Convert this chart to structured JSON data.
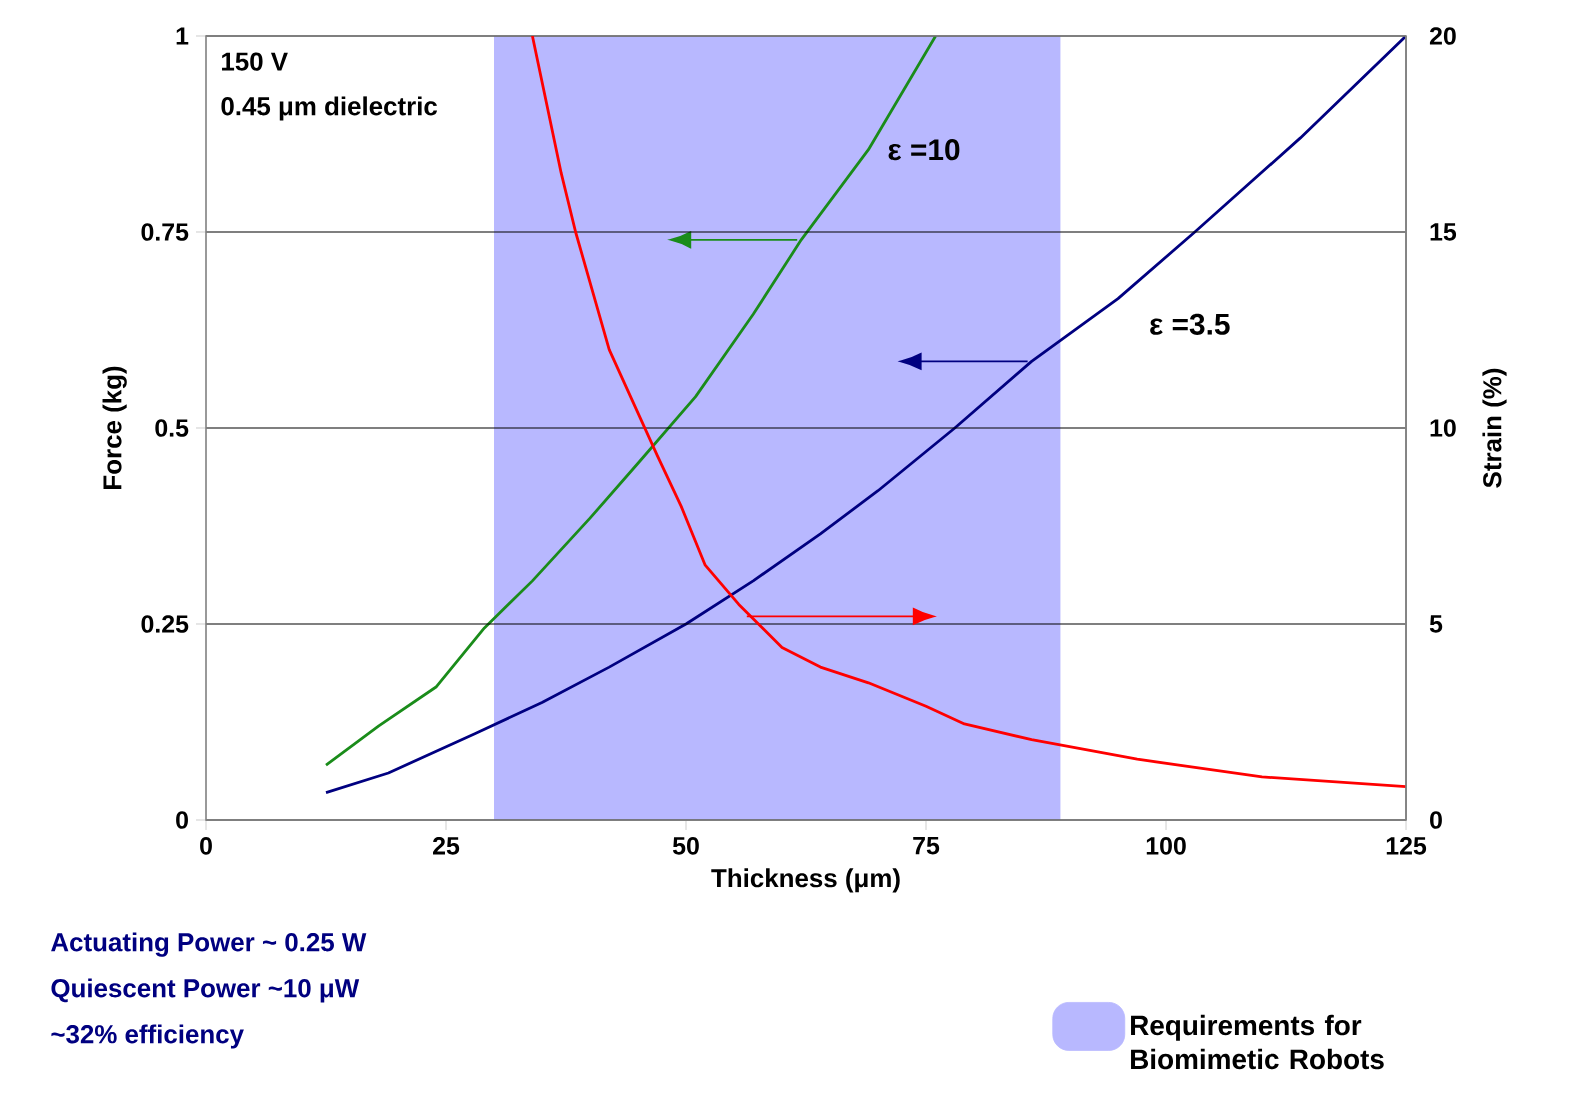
{
  "chart_data": {
    "type": "line",
    "xlabel": "Thickness (μm)",
    "ylabel": "Force (kg)",
    "y2label": "Strain (%)",
    "xlim": [
      0,
      125
    ],
    "xticks": [
      0,
      25,
      50,
      75,
      100,
      125
    ],
    "ylim": [
      0,
      1
    ],
    "yticks": [
      0,
      0.25,
      0.5,
      0.75,
      1
    ],
    "y2lim": [
      0,
      20
    ],
    "y2ticks": [
      0,
      5,
      10,
      15,
      20
    ],
    "grid": "y",
    "legend": "bottom right",
    "marker": "none",
    "line_style": "solid",
    "series": [
      {
        "name": "ε =10",
        "color": "#1a8c1a",
        "x": [
          12.5,
          18,
          24,
          29,
          34,
          40,
          45,
          51,
          57,
          62,
          69,
          76
        ],
        "values": [
          0.07,
          0.12,
          0.17,
          0.245,
          0.305,
          0.385,
          0.455,
          0.54,
          0.645,
          0.74,
          0.855,
          1.0
        ]
      },
      {
        "name": "ε =3.5",
        "color": "#000080",
        "x": [
          12.5,
          19,
          28,
          35,
          42,
          50,
          57,
          64,
          70,
          78,
          86,
          95,
          103,
          114,
          125
        ],
        "values": [
          0.035,
          0.06,
          0.11,
          0.15,
          0.195,
          0.25,
          0.305,
          0.365,
          0.42,
          0.5,
          0.585,
          0.665,
          0.75,
          0.87,
          1.0
        ]
      },
      {
        "color": "#ff0000",
        "axis": "y2",
        "x": [
          34,
          37,
          38.5,
          42,
          47,
          49.5,
          52,
          55.5,
          60,
          64,
          69,
          75,
          79,
          86,
          97,
          110,
          125
        ],
        "values": [
          20,
          16.5,
          15,
          12,
          9.3,
          8,
          6.5,
          5.5,
          4.4,
          3.9,
          3.5,
          2.9,
          2.45,
          2.05,
          1.55,
          1.1,
          0.85
        ]
      }
    ],
    "bands": [
      {
        "axis": "x",
        "from": 30,
        "to": 89,
        "label": "Requirements for Biomimetic Robots",
        "color": "#b8b8ff"
      }
    ],
    "annotations": [
      "150 V",
      "0.45 μm dielectric",
      "Actuating Power ~ 0.25 W",
      "Quiescent Power ~10 μW",
      "~32% efficiency"
    ]
  }
}
